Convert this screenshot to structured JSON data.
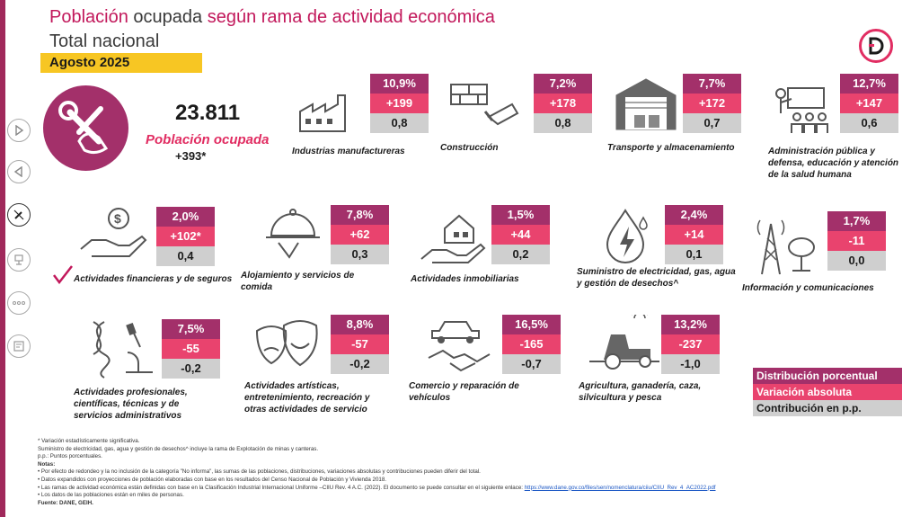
{
  "header": {
    "title_part1": "Población",
    "title_part2": " ocupada ",
    "title_part3": "según rama de actividad económica",
    "subtitle": "Total nacional",
    "date": "Agosto 2025"
  },
  "hero": {
    "total": "23.811",
    "label": "Población ocupada",
    "change": "+393*"
  },
  "colors": {
    "pct": "#a3306a",
    "abs": "#e9436e",
    "con": "#cfcfcf",
    "accent": "#e12d62"
  },
  "sectors": [
    {
      "name": "Industrias manufactureras",
      "pct": "10,9%",
      "abs": "+199",
      "con": "0,8",
      "icon": "factory-icon"
    },
    {
      "name": "Construcción",
      "pct": "7,2%",
      "abs": "+178",
      "con": "0,8",
      "icon": "bricks-trowel-icon"
    },
    {
      "name": "Transporte y almacenamiento",
      "pct": "7,7%",
      "abs": "+172",
      "con": "0,7",
      "icon": "warehouse-icon"
    },
    {
      "name": "Administración pública y defensa, educación y atención de la salud humana",
      "pct": "12,7%",
      "abs": "+147",
      "con": "0,6",
      "icon": "classroom-icon"
    },
    {
      "name": "Actividades financieras y de seguros",
      "pct": "2,0%",
      "abs": "+102*",
      "con": "0,4",
      "icon": "money-hand-icon"
    },
    {
      "name": "Alojamiento y servicios de comida",
      "pct": "7,8%",
      "abs": "+62",
      "con": "0,3",
      "icon": "food-cloche-icon"
    },
    {
      "name": "Actividades inmobiliarias",
      "pct": "1,5%",
      "abs": "+44",
      "con": "0,2",
      "icon": "house-hand-icon"
    },
    {
      "name": "Suministro de electricidad, gas, agua y gestión de desechos^",
      "pct": "2,4%",
      "abs": "+14",
      "con": "0,1",
      "icon": "energy-drop-icon"
    },
    {
      "name": "Información y comunicaciones",
      "pct": "1,7%",
      "abs": "-11",
      "con": "0,0",
      "icon": "antenna-icon"
    },
    {
      "name": "Actividades profesionales, científicas, técnicas y de servicios administrativos",
      "pct": "7,5%",
      "abs": "-55",
      "con": "-0,2",
      "icon": "dna-microscope-icon"
    },
    {
      "name": "Actividades artísticas, entretenimiento, recreación y otras actividades de servicio",
      "pct": "8,8%",
      "abs": "-57",
      "con": "-0,2",
      "icon": "theater-masks-icon"
    },
    {
      "name": "Comercio y reparación de vehículos",
      "pct": "16,5%",
      "abs": "-165",
      "con": "-0,7",
      "icon": "car-handshake-icon"
    },
    {
      "name": "Agricultura, ganadería, caza, silvicultura y pesca",
      "pct": "13,2%",
      "abs": "-237",
      "con": "-1,0",
      "icon": "tractor-icon"
    }
  ],
  "legend": {
    "pct_label": "Distribución porcentual",
    "abs_label": "Variación absoluta",
    "con_label": "Contribución en p.p."
  },
  "footnotes": {
    "line1": "* Variación estadísticamente significativa.",
    "line2": "Suministro de electricidad, gas, agua y gestión de desechos^ incluye la rama de Explotación de minas y canteras.",
    "line3": "p.p.: Puntos porcentuales.",
    "notes_title": "Notas:",
    "note1": "• Por efecto de redondeo y la no inclusión de la categoría \"No informa\", las sumas de las poblaciones, distribuciones, variaciones absolutas y contribuciones pueden diferir del total.",
    "note2": "• Datos expandidos con proyecciones de población elaboradas con base en los resultados del Censo Nacional de Población y Vivienda 2018.",
    "note3": "• Las ramas de actividad económica están definidas con base en la Clasificación Industrial Internacional Uniforme –CIIU Rev. 4 A.C. (2022). El documento se puede consultar en el siguiente enlace: ",
    "note3_link": "https://www.dane.gov.co/files/sen/nomenclatura/ciiu/CIIU_Rev_4_AC2022.pdf",
    "note4": "• Los datos de las poblaciones están en miles de personas.",
    "source": "Fuente: DANE, GEIH."
  }
}
